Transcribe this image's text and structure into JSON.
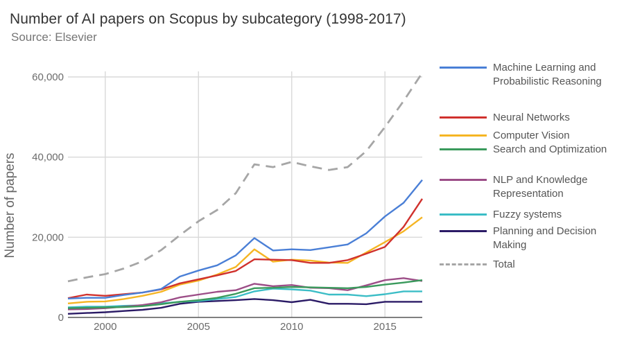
{
  "title": "Number of AI papers on Scopus by subcategory (1998-2017)",
  "subtitle": "Source: Elsevier",
  "chart_data": {
    "type": "line",
    "title": "Number of AI papers on Scopus by subcategory (1998-2017)",
    "subtitle": "Source: Elsevier",
    "xlabel": "",
    "ylabel": "Number of papers",
    "xlim": [
      1998,
      2017
    ],
    "ylim": [
      0,
      60000
    ],
    "x_ticks": [
      2000,
      2005,
      2010,
      2015
    ],
    "x_tick_labels": [
      "2000",
      "2005",
      "2010",
      "2015"
    ],
    "y_ticks": [
      0,
      20000,
      40000,
      60000
    ],
    "y_tick_labels": [
      "0",
      "20,000",
      "40,000",
      "60,000"
    ],
    "grid": true,
    "legend_position": "right",
    "x": [
      1998,
      1999,
      2000,
      2001,
      2002,
      2003,
      2004,
      2005,
      2006,
      2007,
      2008,
      2009,
      2010,
      2011,
      2012,
      2013,
      2014,
      2015,
      2016,
      2017
    ],
    "series": [
      {
        "name": "Machine Learning and Probabilistic Reasoning",
        "color": "#4a7fd6",
        "dash": "solid",
        "values": [
          4700,
          4900,
          4900,
          5600,
          6200,
          7100,
          10200,
          11700,
          13000,
          15500,
          19800,
          16700,
          17000,
          16800,
          17500,
          18200,
          21000,
          25200,
          28600,
          34300
        ]
      },
      {
        "name": "Neural Networks",
        "color": "#d0312d",
        "dash": "solid",
        "values": [
          4800,
          5700,
          5400,
          5800,
          6200,
          7000,
          8500,
          9500,
          10500,
          11600,
          14500,
          14400,
          14300,
          13600,
          13600,
          14300,
          15900,
          17600,
          22600,
          29600
        ]
      },
      {
        "name": "Computer Vision",
        "color": "#f5b523",
        "dash": "solid",
        "values": [
          3500,
          3900,
          4000,
          4600,
          5400,
          6400,
          8200,
          9200,
          10700,
          12600,
          17000,
          13900,
          14400,
          14200,
          13700,
          13600,
          16200,
          18800,
          21500,
          25000
        ]
      },
      {
        "name": "Search and Optimization",
        "color": "#3a9a5c",
        "dash": "solid",
        "values": [
          2300,
          2400,
          2500,
          2600,
          2800,
          3300,
          3900,
          4300,
          4900,
          5900,
          7300,
          7400,
          7600,
          7500,
          7400,
          7300,
          7600,
          8200,
          8700,
          9300
        ]
      },
      {
        "name": "NLP and Knowledge Representation",
        "color": "#9c4d87",
        "dash": "solid",
        "values": [
          2000,
          2100,
          2300,
          2700,
          3100,
          3800,
          5000,
          5700,
          6400,
          6800,
          8400,
          7800,
          8100,
          7400,
          7300,
          6800,
          8000,
          9300,
          9800,
          9100
        ]
      },
      {
        "name": "Fuzzy systems",
        "color": "#3bbdc6",
        "dash": "solid",
        "values": [
          2500,
          2700,
          2700,
          2900,
          3000,
          3500,
          3900,
          4100,
          4600,
          5100,
          6500,
          7200,
          7000,
          6700,
          5700,
          5700,
          5300,
          5800,
          6500,
          6500
        ]
      },
      {
        "name": "Planning and Decision Making",
        "color": "#2b1b66",
        "dash": "solid",
        "values": [
          900,
          1100,
          1300,
          1600,
          1900,
          2400,
          3400,
          3900,
          4100,
          4300,
          4600,
          4300,
          3800,
          4400,
          3400,
          3400,
          3300,
          3900,
          3900,
          3900
        ]
      },
      {
        "name": "Total",
        "color": "#a6a6a6",
        "dash": "dashed",
        "values": [
          9000,
          10000,
          10800,
          12200,
          14000,
          16800,
          20500,
          24000,
          26800,
          31000,
          38200,
          37500,
          38800,
          37700,
          36800,
          37500,
          41500,
          47500,
          54000,
          61000
        ]
      }
    ]
  },
  "legend": [
    {
      "label": "Machine Learning and Probabilistic Reasoning",
      "color": "#4a7fd6",
      "dashed": false
    },
    {
      "label": "Neural Networks",
      "color": "#d0312d",
      "dashed": false
    },
    {
      "label": "Computer Vision",
      "color": "#f5b523",
      "dashed": false
    },
    {
      "label": "Search and Optimization",
      "color": "#3a9a5c",
      "dashed": false
    },
    {
      "label": "NLP and Knowledge Representation",
      "color": "#9c4d87",
      "dashed": false
    },
    {
      "label": "Fuzzy systems",
      "color": "#3bbdc6",
      "dashed": false
    },
    {
      "label": "Planning and Decision Making",
      "color": "#2b1b66",
      "dashed": false
    },
    {
      "label": "Total",
      "color": "#a6a6a6",
      "dashed": true
    }
  ]
}
